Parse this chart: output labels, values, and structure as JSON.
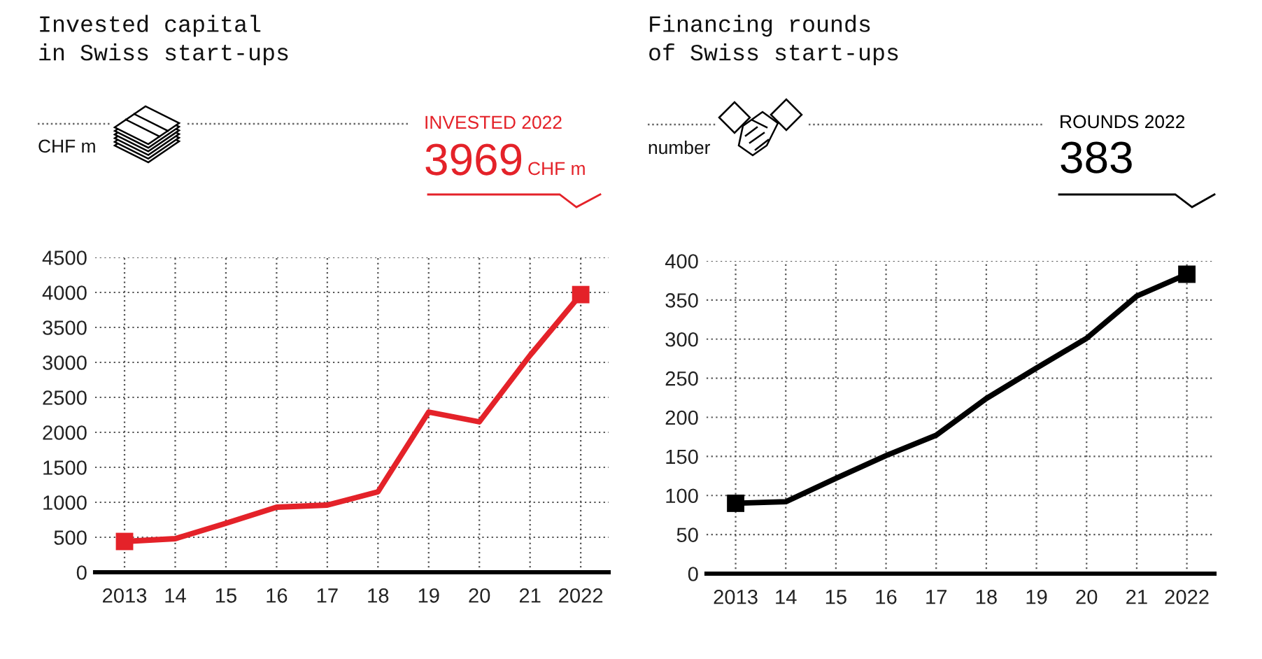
{
  "chart_data": [
    {
      "type": "line",
      "title": "Invested capital\nin Swiss start-ups",
      "ylabel": "CHF m",
      "annotations": [
        "INVESTED 2022",
        "3969",
        "CHF m"
      ],
      "categories": [
        "2013",
        "14",
        "15",
        "16",
        "17",
        "18",
        "19",
        "20",
        "21",
        "2022"
      ],
      "series": [
        {
          "color": "#e42229",
          "values": [
            440,
            480,
            700,
            930,
            960,
            1150,
            2290,
            2150,
            3100,
            3969
          ]
        },
        {
          "type": "scatter",
          "marker": "square",
          "color": "#e42229",
          "values": [
            440,
            null,
            null,
            null,
            null,
            null,
            null,
            null,
            null,
            3969
          ]
        }
      ],
      "ylim": [
        0,
        4500
      ],
      "yticks": [
        0,
        500,
        1000,
        1500,
        2000,
        2500,
        3000,
        3500,
        4000,
        4500
      ],
      "grid": true
    },
    {
      "type": "line",
      "title": "Financing rounds\nof Swiss start-ups",
      "ylabel": "number",
      "annotations": [
        "ROUNDS 2022",
        "383"
      ],
      "categories": [
        "2013",
        "14",
        "15",
        "16",
        "17",
        "18",
        "19",
        "20",
        "21",
        "2022"
      ],
      "series": [
        {
          "color": "#000000",
          "values": [
            90,
            92,
            122,
            151,
            177,
            224,
            263,
            301,
            355,
            383
          ]
        },
        {
          "type": "scatter",
          "marker": "square",
          "color": "#000000",
          "values": [
            90,
            null,
            null,
            null,
            null,
            null,
            null,
            null,
            null,
            383
          ]
        }
      ],
      "ylim": [
        0,
        400
      ],
      "yticks": [
        0,
        50,
        100,
        150,
        200,
        250,
        300,
        350,
        400
      ],
      "grid": true
    }
  ]
}
